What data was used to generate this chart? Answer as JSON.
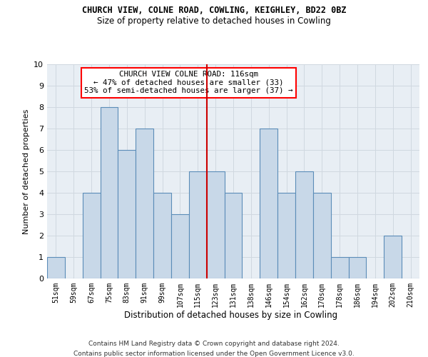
{
  "title1": "CHURCH VIEW, COLNE ROAD, COWLING, KEIGHLEY, BD22 0BZ",
  "title2": "Size of property relative to detached houses in Cowling",
  "xlabel": "Distribution of detached houses by size in Cowling",
  "ylabel": "Number of detached properties",
  "footnote1": "Contains HM Land Registry data © Crown copyright and database right 2024.",
  "footnote2": "Contains public sector information licensed under the Open Government Licence v3.0.",
  "bar_labels": [
    "51sqm",
    "59sqm",
    "67sqm",
    "75sqm",
    "83sqm",
    "91sqm",
    "99sqm",
    "107sqm",
    "115sqm",
    "123sqm",
    "131sqm",
    "138sqm",
    "146sqm",
    "154sqm",
    "162sqm",
    "170sqm",
    "178sqm",
    "186sqm",
    "194sqm",
    "202sqm",
    "210sqm"
  ],
  "bar_values": [
    1,
    0,
    4,
    8,
    6,
    7,
    4,
    3,
    5,
    5,
    4,
    0,
    7,
    4,
    5,
    4,
    1,
    1,
    0,
    2,
    0
  ],
  "bar_color": "#c8d8e8",
  "bar_edge_color": "#5b8db8",
  "vline_x_index": 8,
  "vline_color": "#cc0000",
  "annotation_title": "CHURCH VIEW COLNE ROAD: 116sqm",
  "annotation_line1": "← 47% of detached houses are smaller (33)",
  "annotation_line2": "53% of semi-detached houses are larger (37) →",
  "ylim": [
    0,
    10
  ],
  "yticks": [
    0,
    1,
    2,
    3,
    4,
    5,
    6,
    7,
    8,
    9,
    10
  ],
  "grid_color": "#d0d8e0",
  "background_color": "#e8eef4"
}
